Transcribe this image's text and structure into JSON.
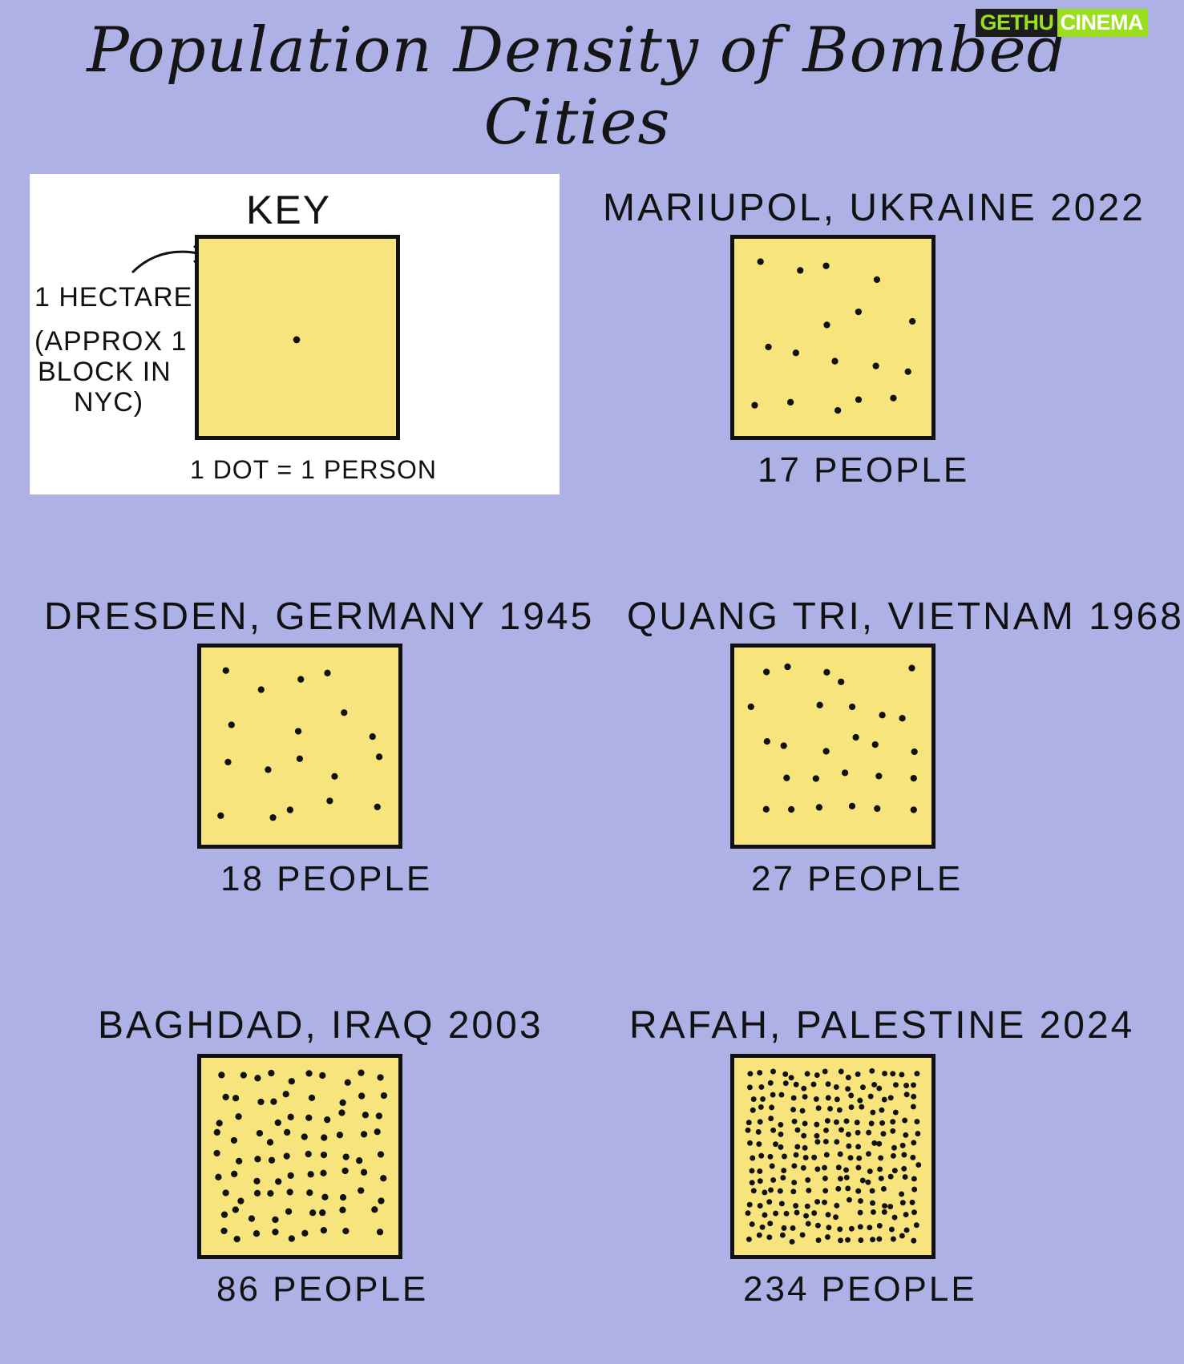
{
  "title": "Population Density of Bombed Cities",
  "watermark": {
    "left": "GETHU",
    "right": "CINEMA"
  },
  "colors": {
    "background": "#aeb1e6",
    "box_fill": "#f8e47c",
    "dot": "#111111",
    "key_panel": "#ffffff"
  },
  "key": {
    "title": "KEY",
    "hectare_label": "1 HECTARE",
    "approx_lines": [
      "(APPROX 1",
      "BLOCK IN",
      "NYC)"
    ],
    "legend": "1 DOT = 1 PERSON",
    "dots": 1
  },
  "count_suffix": "PEOPLE",
  "chart_data": {
    "type": "table",
    "title": "Population Density of Bombed Cities",
    "unit": "people per hectare (1 dot = 1 person)",
    "categories": [
      "MARIUPOL, UKRAINE 2022",
      "DRESDEN, GERMANY 1945",
      "QUANG TRI, VIETNAM 1968",
      "BAGHDAD, IRAQ 2003",
      "RAFAH, PALESTINE 2024"
    ],
    "values": [
      17,
      18,
      27,
      86,
      234
    ]
  },
  "cities": [
    {
      "heading": "MARIUPOL, UKRAINE 2022",
      "count_label": "17 PEOPLE",
      "people": 17,
      "seed": 11
    },
    {
      "heading": "DRESDEN, GERMANY 1945",
      "count_label": "18 PEOPLE",
      "people": 18,
      "seed": 23
    },
    {
      "heading": "QUANG TRI, VIETNAM 1968",
      "count_label": "27 PEOPLE",
      "people": 27,
      "seed": 37
    },
    {
      "heading": "BAGHDAD, IRAQ 2003",
      "count_label": "86 PEOPLE",
      "people": 86,
      "seed": 41
    },
    {
      "heading": "RAFAH, PALESTINE 2024",
      "count_label": "234 PEOPLE",
      "people": 234,
      "seed": 59
    }
  ]
}
